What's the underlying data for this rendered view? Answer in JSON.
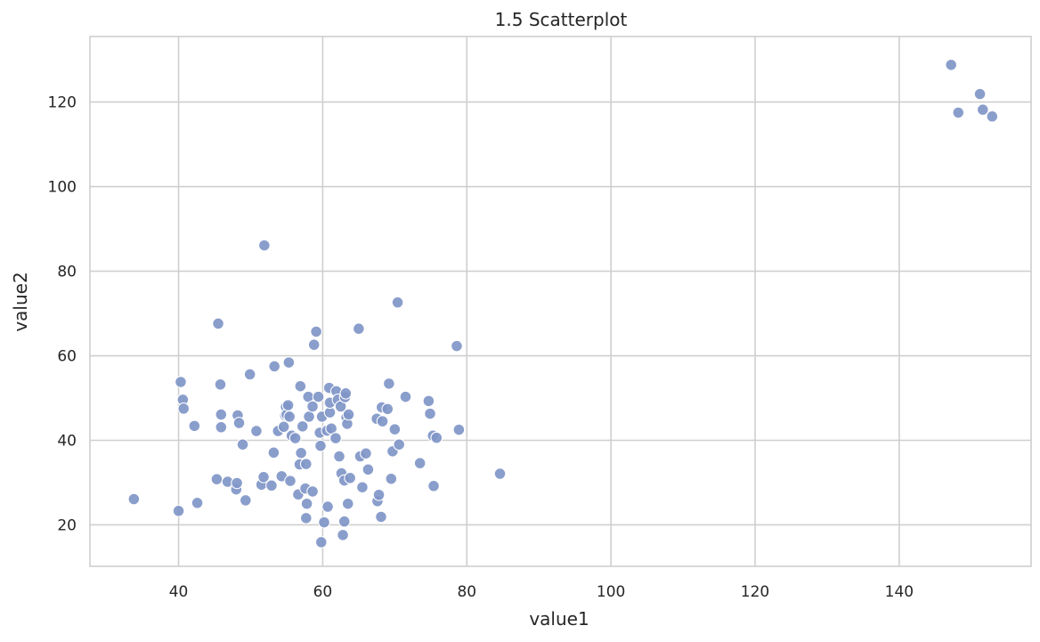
{
  "chart_data": {
    "type": "scatter",
    "title": "1.5 Scatterplot",
    "xlabel": "value1",
    "ylabel": "value2",
    "xlim": [
      27.7,
      158.3
    ],
    "ylim": [
      10.2,
      135.5
    ],
    "xticks": [
      40,
      60,
      80,
      100,
      120,
      140
    ],
    "yticks": [
      20,
      40,
      60,
      80,
      100,
      120
    ],
    "grid": true,
    "point_color": "#8096c8",
    "points": [
      [
        33.8,
        26.1
      ],
      [
        40.0,
        23.3
      ],
      [
        40.3,
        53.8
      ],
      [
        40.6,
        49.6
      ],
      [
        40.7,
        47.5
      ],
      [
        42.2,
        43.4
      ],
      [
        42.6,
        25.2
      ],
      [
        45.3,
        30.8
      ],
      [
        45.5,
        67.6
      ],
      [
        45.8,
        53.2
      ],
      [
        45.9,
        46.1
      ],
      [
        45.9,
        43.1
      ],
      [
        46.8,
        30.2
      ],
      [
        48.0,
        28.4
      ],
      [
        48.1,
        29.9
      ],
      [
        48.2,
        45.9
      ],
      [
        48.4,
        44.1
      ],
      [
        48.9,
        39.0
      ],
      [
        49.3,
        25.8
      ],
      [
        49.9,
        55.6
      ],
      [
        50.8,
        42.2
      ],
      [
        51.5,
        29.5
      ],
      [
        51.8,
        31.3
      ],
      [
        51.9,
        86.1
      ],
      [
        52.9,
        29.3
      ],
      [
        53.2,
        37.1
      ],
      [
        53.3,
        57.5
      ],
      [
        53.8,
        42.2
      ],
      [
        54.3,
        31.5
      ],
      [
        54.6,
        43.2
      ],
      [
        54.8,
        45.9
      ],
      [
        54.9,
        47.9
      ],
      [
        55.0,
        46.1
      ],
      [
        55.2,
        48.3
      ],
      [
        55.3,
        58.4
      ],
      [
        55.4,
        45.6
      ],
      [
        55.5,
        30.4
      ],
      [
        55.7,
        41.1
      ],
      [
        56.2,
        40.5
      ],
      [
        56.6,
        27.2
      ],
      [
        56.8,
        34.3
      ],
      [
        56.9,
        52.8
      ],
      [
        57.0,
        37.0
      ],
      [
        57.2,
        43.3
      ],
      [
        57.6,
        28.6
      ],
      [
        57.7,
        34.4
      ],
      [
        57.7,
        21.6
      ],
      [
        57.8,
        25.0
      ],
      [
        58.0,
        50.3
      ],
      [
        58.1,
        45.6
      ],
      [
        58.6,
        48.0
      ],
      [
        58.6,
        27.9
      ],
      [
        58.8,
        62.6
      ],
      [
        59.1,
        65.7
      ],
      [
        59.4,
        50.3
      ],
      [
        59.6,
        41.8
      ],
      [
        59.7,
        38.7
      ],
      [
        59.8,
        15.9
      ],
      [
        59.9,
        45.6
      ],
      [
        60.2,
        20.6
      ],
      [
        60.6,
        42.3
      ],
      [
        60.7,
        24.3
      ],
      [
        60.9,
        52.4
      ],
      [
        61.0,
        46.6
      ],
      [
        61.0,
        48.9
      ],
      [
        61.2,
        42.8
      ],
      [
        61.8,
        40.5
      ],
      [
        61.9,
        51.6
      ],
      [
        62.1,
        49.6
      ],
      [
        62.3,
        36.2
      ],
      [
        62.5,
        48.0
      ],
      [
        62.6,
        32.2
      ],
      [
        62.8,
        17.6
      ],
      [
        63.0,
        30.5
      ],
      [
        63.0,
        20.8
      ],
      [
        63.1,
        50.2
      ],
      [
        63.2,
        51.1
      ],
      [
        63.3,
        45.4
      ],
      [
        63.4,
        43.9
      ],
      [
        63.5,
        25.0
      ],
      [
        63.6,
        46.1
      ],
      [
        63.8,
        31.1
      ],
      [
        65.0,
        66.4
      ],
      [
        65.2,
        36.2
      ],
      [
        65.5,
        28.9
      ],
      [
        66.0,
        36.9
      ],
      [
        66.3,
        33.1
      ],
      [
        67.5,
        45.1
      ],
      [
        67.6,
        25.6
      ],
      [
        67.8,
        27.1
      ],
      [
        68.1,
        21.9
      ],
      [
        68.2,
        47.8
      ],
      [
        68.3,
        44.5
      ],
      [
        69.0,
        47.4
      ],
      [
        69.2,
        53.4
      ],
      [
        69.5,
        30.9
      ],
      [
        69.7,
        37.4
      ],
      [
        70.0,
        42.6
      ],
      [
        70.4,
        72.6
      ],
      [
        70.6,
        39.0
      ],
      [
        71.5,
        50.3
      ],
      [
        73.5,
        34.6
      ],
      [
        74.7,
        49.3
      ],
      [
        74.9,
        46.3
      ],
      [
        75.3,
        41.1
      ],
      [
        75.4,
        29.2
      ],
      [
        75.8,
        40.6
      ],
      [
        78.6,
        62.3
      ],
      [
        78.9,
        42.5
      ],
      [
        84.6,
        32.1
      ],
      [
        147.2,
        128.8
      ],
      [
        148.2,
        117.5
      ],
      [
        151.2,
        121.9
      ],
      [
        151.6,
        118.2
      ],
      [
        152.9,
        116.6
      ]
    ]
  }
}
